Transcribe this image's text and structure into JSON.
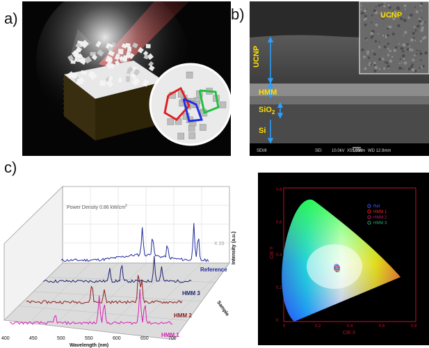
{
  "panels": {
    "a": "a)",
    "b": "b)",
    "c": "c)"
  },
  "sem": {
    "inset_label": "UCNP",
    "layers": [
      "UCNP",
      "HMM",
      "SiO",
      "Si"
    ],
    "sio2_subscript": "2",
    "footer": [
      "SEMI",
      "SEI",
      "10.0kV",
      "X55,000",
      "100nm",
      "WD 12.9mm"
    ]
  },
  "spectra": {
    "power_density_text": "Power Density 0.86 kW/cm",
    "power_density_superscript": "2",
    "scale_note": "X 20",
    "zlabel": "Intensity (a.u.)",
    "depth_label": "Sample",
    "xlabel": "Wavelength (nm)",
    "samples": [
      "Reference",
      "HMM 3",
      "HMM 2",
      "HMM 1"
    ],
    "xticks": [
      "400",
      "450",
      "500",
      "550",
      "600",
      "650",
      "700"
    ],
    "colors": [
      "#1f2a9c",
      "#1b1f6e",
      "#8b1a1a",
      "#d61fb5"
    ]
  },
  "cie": {
    "xlabel": "CIE X",
    "ylabel": "CIE Y",
    "xticks": [
      "0",
      "0.2",
      "0.4",
      "0.6",
      "0.8"
    ],
    "yticks": [
      "0",
      "0.2",
      "0.4",
      "0.6",
      "0.8"
    ],
    "legend": [
      "Ref",
      "HMM 1",
      "HMM 2",
      "HMM 3"
    ],
    "legend_colors": [
      "#3b5bff",
      "#ff2020",
      "#b0205f",
      "#22aa66"
    ],
    "axis_color": "#c8102e"
  }
}
